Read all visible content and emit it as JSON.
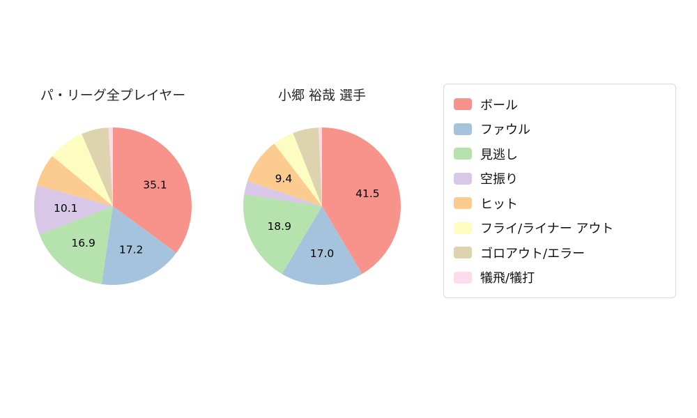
{
  "page": {
    "background": "#ffffff"
  },
  "chart_data": [
    {
      "type": "pie",
      "title": "パ・リーグ全プレイヤー",
      "labels": [
        "ボール",
        "ファウル",
        "見逃し",
        "空振り",
        "ヒット",
        "フライ/ライナー アウト",
        "ゴロアウト/エラー",
        "犠飛/犠打"
      ],
      "values": [
        35.1,
        17.2,
        16.9,
        10.1,
        6.7,
        7.5,
        5.6,
        0.9
      ],
      "shown_value_labels": [
        "35.1",
        "17.2",
        "16.9",
        "10.1"
      ],
      "label_threshold": 9,
      "start_angle_deg": 0,
      "direction": "clockwise",
      "radius": 113
    },
    {
      "type": "pie",
      "title": "小郷 裕哉 選手",
      "labels": [
        "ボール",
        "ファウル",
        "見逃し",
        "空振り",
        "ヒット",
        "フライ/ライナー アウト",
        "ゴロアウト/エラー",
        "犠飛/犠打"
      ],
      "values": [
        41.5,
        17.0,
        18.9,
        2.8,
        9.4,
        4.4,
        5.3,
        0.7
      ],
      "shown_value_labels": [
        "41.5",
        "17.0",
        "18.9",
        "9.4"
      ],
      "label_threshold": 9,
      "start_angle_deg": 0,
      "direction": "clockwise",
      "radius": 113
    }
  ],
  "legend": {
    "position": "right",
    "items": [
      {
        "label": "ボール",
        "color": "#f8938b"
      },
      {
        "label": "ファウル",
        "color": "#a5c3dc"
      },
      {
        "label": "見逃し",
        "color": "#b6e2ae"
      },
      {
        "label": "空振り",
        "color": "#d8c7e6"
      },
      {
        "label": "ヒット",
        "color": "#fccb8f"
      },
      {
        "label": "フライ/ライナー アウト",
        "color": "#fdfdc2"
      },
      {
        "label": "ゴロアウト/エラー",
        "color": "#ddd3ae"
      },
      {
        "label": "犠飛/犠打",
        "color": "#fcdcec"
      }
    ]
  }
}
